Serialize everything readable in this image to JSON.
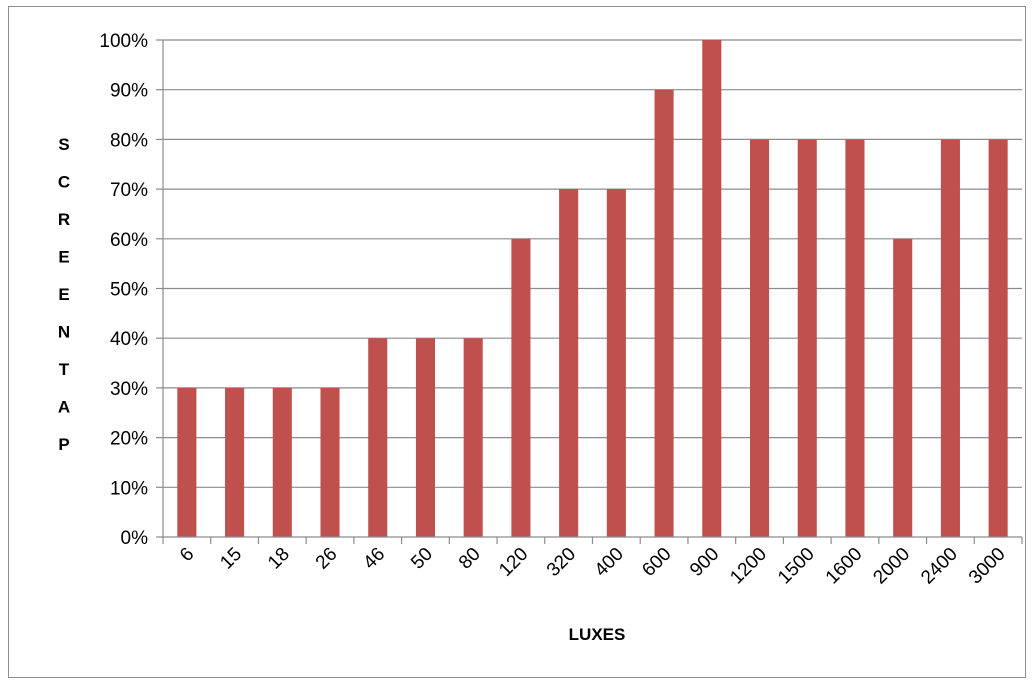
{
  "chart_data": {
    "type": "bar",
    "title": "",
    "xlabel": "LUXES",
    "ylabel": "SCREENTAP",
    "ylabel_letters": [
      "S",
      "C",
      "R",
      "E",
      "E",
      "N",
      "T",
      "A",
      "P"
    ],
    "categories": [
      "6",
      "15",
      "18",
      "26",
      "46",
      "50",
      "80",
      "120",
      "320",
      "400",
      "600",
      "900",
      "1200",
      "1500",
      "1600",
      "2000",
      "2400",
      "3000"
    ],
    "values": [
      30,
      30,
      30,
      30,
      40,
      40,
      40,
      60,
      70,
      70,
      90,
      100,
      80,
      80,
      80,
      60,
      80,
      80
    ],
    "ylim": [
      0,
      100
    ],
    "yticks": [
      "0%",
      "10%",
      "20%",
      "30%",
      "40%",
      "50%",
      "60%",
      "70%",
      "80%",
      "90%",
      "100%"
    ],
    "grid": true,
    "legend": "none",
    "colors": {
      "bar": "#c0504d",
      "grid": "#8c8c8c",
      "axis": "#8c8c8c"
    }
  }
}
